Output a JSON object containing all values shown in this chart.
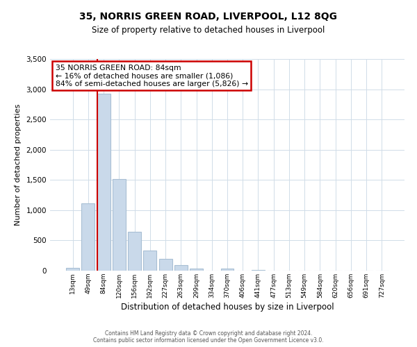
{
  "title": "35, NORRIS GREEN ROAD, LIVERPOOL, L12 8QG",
  "subtitle": "Size of property relative to detached houses in Liverpool",
  "xlabel": "Distribution of detached houses by size in Liverpool",
  "ylabel": "Number of detached properties",
  "bar_labels": [
    "13sqm",
    "49sqm",
    "84sqm",
    "120sqm",
    "156sqm",
    "192sqm",
    "227sqm",
    "263sqm",
    "299sqm",
    "334sqm",
    "370sqm",
    "406sqm",
    "441sqm",
    "477sqm",
    "513sqm",
    "549sqm",
    "584sqm",
    "620sqm",
    "656sqm",
    "691sqm",
    "727sqm"
  ],
  "bar_values": [
    50,
    1110,
    2930,
    1510,
    640,
    330,
    195,
    95,
    40,
    0,
    30,
    0,
    10,
    0,
    0,
    0,
    0,
    0,
    0,
    0,
    0
  ],
  "bar_color": "#c9d9ea",
  "bar_edge_color": "#a8bfd4",
  "marker_index": 2,
  "marker_color": "#cc0000",
  "ylim": [
    0,
    3500
  ],
  "yticks": [
    0,
    500,
    1000,
    1500,
    2000,
    2500,
    3000,
    3500
  ],
  "annotation_title": "35 NORRIS GREEN ROAD: 84sqm",
  "annotation_line1": "← 16% of detached houses are smaller (1,086)",
  "annotation_line2": "84% of semi-detached houses are larger (5,826) →",
  "annotation_box_color": "#ffffff",
  "annotation_box_edge": "#cc0000",
  "footer1": "Contains HM Land Registry data © Crown copyright and database right 2024.",
  "footer2": "Contains public sector information licensed under the Open Government Licence v3.0.",
  "plot_background": "#ffffff",
  "grid_color": "#d0dce8"
}
